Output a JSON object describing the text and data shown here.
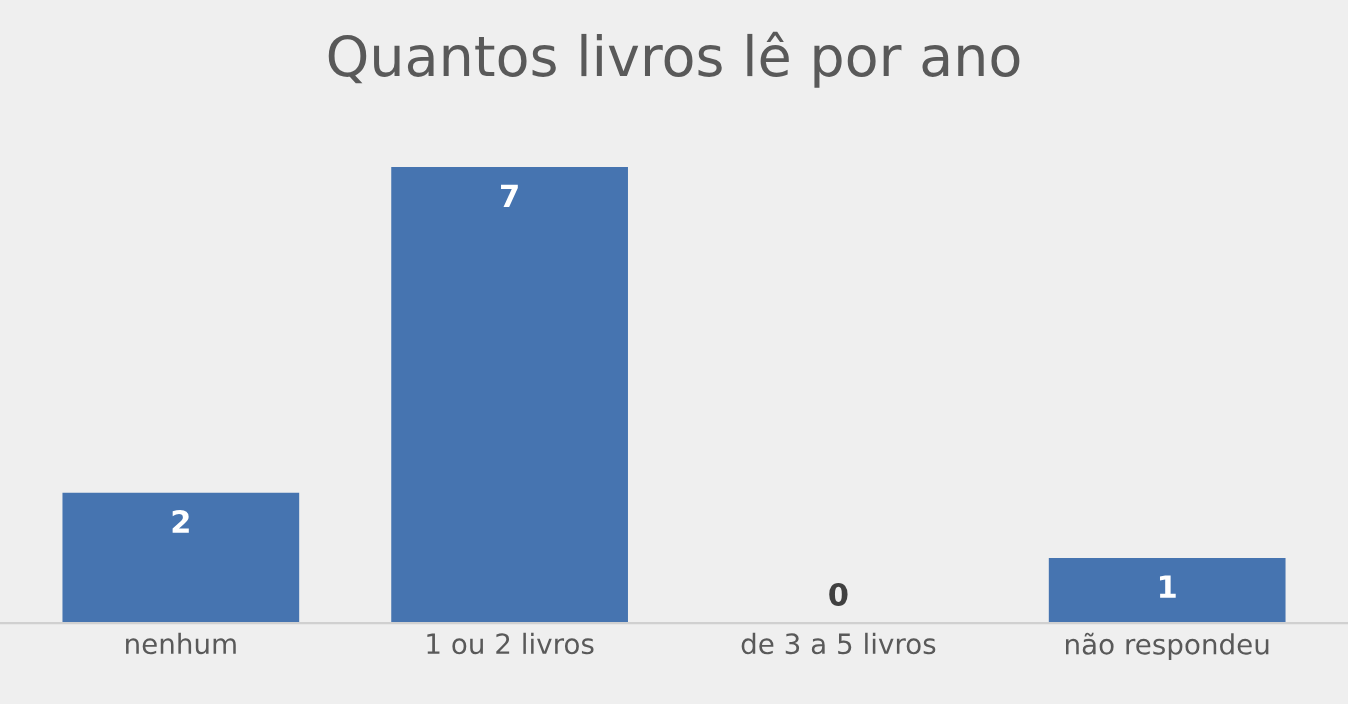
{
  "chart_data": {
    "type": "bar",
    "title": "Quantos livros lê por ano",
    "categories": [
      "nenhum",
      "1 ou 2 livros",
      "de 3 a 5 livros",
      "não respondeu"
    ],
    "values": [
      2,
      7,
      0,
      1
    ],
    "color": "#4674b0",
    "data_labels": true,
    "grid": false,
    "legend": false
  }
}
